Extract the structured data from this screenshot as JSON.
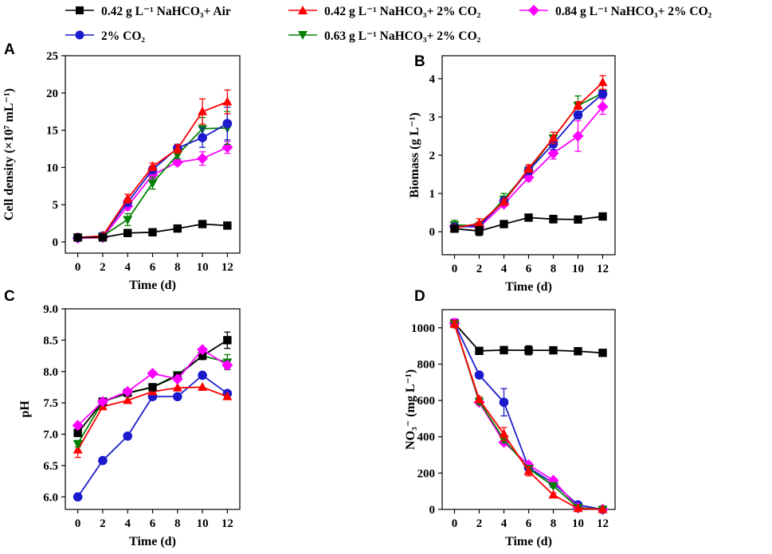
{
  "legend": [
    {
      "label": "0.42 g L⁻¹ NaHCO₃+ Air",
      "series": "s_air"
    },
    {
      "label": "0.42 g L⁻¹ NaHCO₃+ 2% CO₂",
      "series": "s_042"
    },
    {
      "label": "0.84 g L⁻¹ NaHCO₃+ 2% CO₂",
      "series": "s_084"
    },
    {
      "label": "2% CO₂",
      "series": "s_co2"
    },
    {
      "label": "0.63 g L⁻¹ NaHCO₃+ 2%  CO₂",
      "series": "s_063"
    }
  ],
  "series_styles": {
    "s_air": {
      "color": "#000000",
      "marker": "square"
    },
    "s_042": {
      "color": "#ff0000",
      "marker": "triangle-up"
    },
    "s_084": {
      "color": "#ff00ff",
      "marker": "diamond"
    },
    "s_co2": {
      "color": "#1a1acc",
      "marker": "circle"
    },
    "s_063": {
      "color": "#008000",
      "marker": "triangle-down"
    }
  },
  "chart_data": [
    {
      "panel": "A",
      "type": "line",
      "xlabel": "Time (d)",
      "ylabel": "Cell density (×10⁷ mL⁻¹)",
      "xlim": [
        -1,
        13
      ],
      "ylim": [
        -1.5,
        25
      ],
      "xticks": [
        0,
        2,
        4,
        6,
        8,
        10,
        12
      ],
      "yticks": [
        0,
        5,
        10,
        15,
        20,
        25
      ],
      "x": [
        0,
        2,
        4,
        6,
        8,
        10,
        12
      ],
      "series": [
        {
          "id": "s_084",
          "values": [
            0.5,
            0.6,
            4.8,
            9.0,
            10.7,
            11.2,
            12.7
          ],
          "errors": [
            0,
            0,
            0.5,
            0.5,
            0.4,
            0.9,
            0.8
          ]
        },
        {
          "id": "s_063",
          "values": [
            0.6,
            0.8,
            3.0,
            7.9,
            11.7,
            15.2,
            15.3
          ],
          "errors": [
            0,
            0,
            0.8,
            0.8,
            0.5,
            1.5,
            2.2
          ]
        },
        {
          "id": "s_co2",
          "values": [
            0.6,
            0.8,
            5.3,
            9.7,
            12.6,
            14.0,
            15.9
          ],
          "errors": [
            0,
            0,
            0.5,
            0.5,
            0.5,
            1.3,
            2.2
          ]
        },
        {
          "id": "s_042",
          "values": [
            0.6,
            0.8,
            5.8,
            10.1,
            12.5,
            17.5,
            18.8
          ],
          "errors": [
            0,
            0,
            0.6,
            0.5,
            0.6,
            1.7,
            1.6
          ]
        },
        {
          "id": "s_air",
          "values": [
            0.6,
            0.6,
            1.2,
            1.3,
            1.8,
            2.4,
            2.2
          ],
          "errors": [
            0,
            0,
            0,
            0,
            0.4,
            0.3,
            0.3
          ]
        }
      ]
    },
    {
      "panel": "B",
      "type": "line",
      "xlabel": "Time (d)",
      "ylabel": "Biomass (g L⁻¹)",
      "xlim": [
        -1,
        13
      ],
      "ylim": [
        -0.6,
        4.6
      ],
      "xticks": [
        0,
        2,
        4,
        6,
        8,
        10,
        12
      ],
      "yticks": [
        0,
        1,
        2,
        3,
        4
      ],
      "x": [
        0,
        2,
        4,
        6,
        8,
        10,
        12
      ],
      "series": [
        {
          "id": "s_084",
          "values": [
            0.15,
            0.12,
            0.72,
            1.42,
            2.05,
            2.5,
            3.27
          ],
          "errors": [
            0.05,
            0.05,
            0.05,
            0.1,
            0.15,
            0.4,
            0.2
          ]
        },
        {
          "id": "s_063",
          "values": [
            0.18,
            0.15,
            0.85,
            1.6,
            2.45,
            3.3,
            3.62
          ],
          "errors": [
            0.12,
            0.1,
            0.15,
            0.1,
            0.15,
            0.25,
            0.1
          ]
        },
        {
          "id": "s_co2",
          "values": [
            0.12,
            0.15,
            0.8,
            1.6,
            2.3,
            3.05,
            3.6
          ],
          "errors": [
            0.05,
            0.05,
            0.05,
            0.1,
            0.15,
            0.1,
            0.1
          ]
        },
        {
          "id": "s_042",
          "values": [
            0.1,
            0.22,
            0.78,
            1.65,
            2.45,
            3.3,
            3.9
          ],
          "errors": [
            0.05,
            0.12,
            0.05,
            0.1,
            0.15,
            0.1,
            0.18
          ]
        },
        {
          "id": "s_air",
          "values": [
            0.08,
            0.02,
            0.2,
            0.37,
            0.33,
            0.32,
            0.4
          ],
          "errors": [
            0.05,
            0.12,
            0.05,
            0.08,
            0.1,
            0.05,
            0.05
          ]
        }
      ]
    },
    {
      "panel": "C",
      "type": "line",
      "xlabel": "Time (d)",
      "ylabel": "pH",
      "xlim": [
        -1,
        13
      ],
      "ylim": [
        5.8,
        9.0
      ],
      "xticks": [
        0,
        2,
        4,
        6,
        8,
        10,
        12
      ],
      "yticks": [
        6.0,
        6.5,
        7.0,
        7.5,
        8.0,
        8.5,
        9.0
      ],
      "x": [
        0,
        2,
        4,
        6,
        8,
        10,
        12
      ],
      "series": [
        {
          "id": "s_co2",
          "values": [
            6.0,
            6.58,
            6.97,
            7.6,
            7.6,
            7.94,
            7.65
          ],
          "errors": [
            0,
            0,
            0,
            0.05,
            0,
            0,
            0
          ]
        },
        {
          "id": "s_042",
          "values": [
            6.75,
            7.44,
            7.54,
            7.68,
            7.74,
            7.75,
            7.6
          ],
          "errors": [
            0.12,
            0,
            0,
            0,
            0,
            0,
            0
          ]
        },
        {
          "id": "s_063",
          "values": [
            6.85,
            7.52,
            7.65,
            7.75,
            7.95,
            8.25,
            8.15
          ],
          "errors": [
            0.05,
            0,
            0,
            0,
            0,
            0,
            0.12
          ]
        },
        {
          "id": "s_air",
          "values": [
            7.02,
            7.52,
            7.66,
            7.75,
            7.93,
            8.25,
            8.5
          ],
          "errors": [
            0.03,
            0,
            0,
            0,
            0,
            0.05,
            0.13
          ]
        },
        {
          "id": "s_084",
          "values": [
            7.14,
            7.52,
            7.68,
            7.97,
            7.88,
            8.35,
            8.1
          ],
          "errors": [
            0.03,
            0,
            0,
            0,
            0,
            0,
            0.05
          ]
        }
      ]
    },
    {
      "panel": "D",
      "type": "line",
      "xlabel": "Time (d)",
      "ylabel": "NO₃⁻ (mg L⁻¹)",
      "xlim": [
        -1,
        13
      ],
      "ylim": [
        0,
        1100
      ],
      "xticks": [
        0,
        2,
        4,
        6,
        8,
        10,
        12
      ],
      "yticks": [
        0,
        200,
        400,
        600,
        800,
        1000
      ],
      "x": [
        0,
        2,
        4,
        6,
        8,
        10,
        12
      ],
      "series": [
        {
          "id": "s_air",
          "values": [
            1025,
            873,
            877,
            876,
            876,
            871,
            862
          ],
          "errors": [
            20,
            10,
            20,
            25,
            10,
            10,
            15
          ]
        },
        {
          "id": "s_co2",
          "values": [
            1025,
            740,
            590,
            230,
            145,
            25,
            0
          ],
          "errors": [
            20,
            15,
            75,
            20,
            10,
            0,
            0
          ]
        },
        {
          "id": "s_084",
          "values": [
            1025,
            590,
            370,
            245,
            160,
            10,
            0
          ],
          "errors": [
            25,
            15,
            15,
            15,
            10,
            0,
            0
          ]
        },
        {
          "id": "s_063",
          "values": [
            1020,
            595,
            385,
            225,
            130,
            10,
            0
          ],
          "errors": [
            20,
            15,
            15,
            15,
            10,
            0,
            0
          ]
        },
        {
          "id": "s_042",
          "values": [
            1020,
            605,
            415,
            210,
            80,
            5,
            0
          ],
          "errors": [
            20,
            15,
            35,
            25,
            10,
            0,
            0
          ]
        }
      ]
    }
  ]
}
